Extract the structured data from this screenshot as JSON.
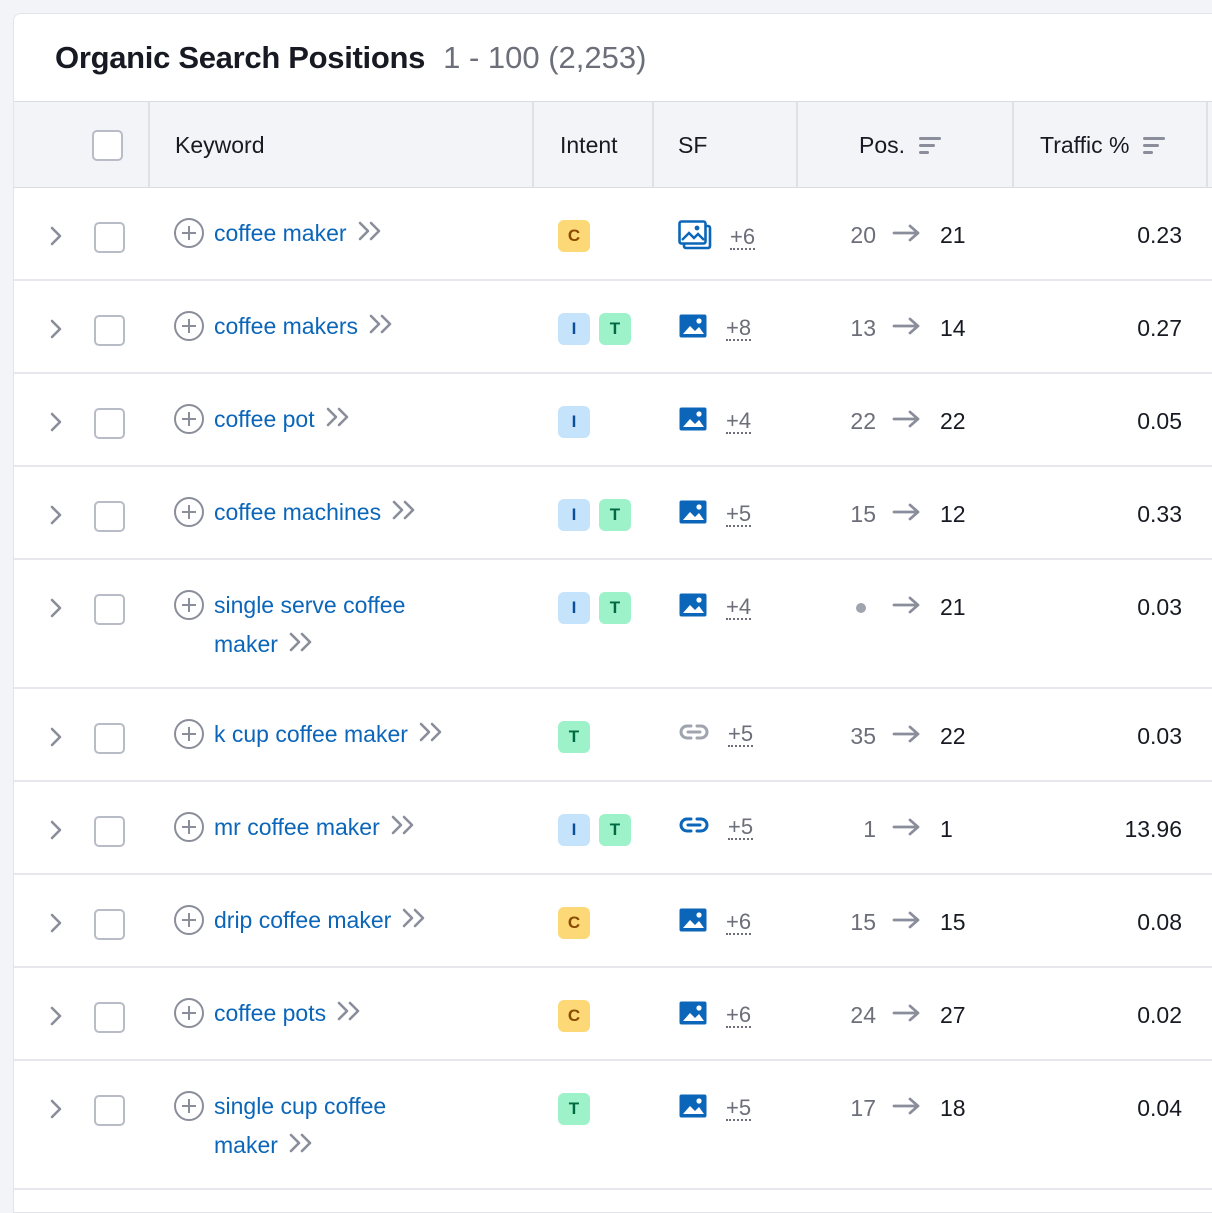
{
  "header": {
    "title": "Organic Search Positions",
    "range": "1 - 100 (2,253)"
  },
  "columns": {
    "keyword": "Keyword",
    "intent": "Intent",
    "sf": "SF",
    "pos": "Pos.",
    "traffic": "Traffic %"
  },
  "rows": [
    {
      "kw1": "coffee maker",
      "kw2": "",
      "intents": [
        "C"
      ],
      "sf_icon": "image-stack-icon",
      "sf_more": "+6",
      "pos_prev": "20",
      "pos_cur": "21",
      "traffic": "0.23"
    },
    {
      "kw1": "coffee makers",
      "kw2": "",
      "intents": [
        "I",
        "T"
      ],
      "sf_icon": "image-icon",
      "sf_more": "+8",
      "pos_prev": "13",
      "pos_cur": "14",
      "traffic": "0.27"
    },
    {
      "kw1": "coffee pot",
      "kw2": "",
      "intents": [
        "I"
      ],
      "sf_icon": "image-icon",
      "sf_more": "+4",
      "pos_prev": "22",
      "pos_cur": "22",
      "traffic": "0.05"
    },
    {
      "kw1": "coffee machines",
      "kw2": "",
      "intents": [
        "I",
        "T"
      ],
      "sf_icon": "image-icon",
      "sf_more": "+5",
      "pos_prev": "15",
      "pos_cur": "12",
      "traffic": "0.33"
    },
    {
      "kw1": "single serve coffee",
      "kw2": "maker",
      "intents": [
        "I",
        "T"
      ],
      "sf_icon": "image-icon",
      "sf_more": "+4",
      "pos_prev": "",
      "pos_cur": "21",
      "traffic": "0.03"
    },
    {
      "kw1": "k cup coffee maker",
      "kw2": "",
      "intents": [
        "T"
      ],
      "sf_icon": "link-icon-gray",
      "sf_more": "+5",
      "pos_prev": "35",
      "pos_cur": "22",
      "traffic": "0.03"
    },
    {
      "kw1": "mr coffee maker",
      "kw2": "",
      "intents": [
        "I",
        "T"
      ],
      "sf_icon": "link-icon",
      "sf_more": "+5",
      "pos_prev": "1",
      "pos_cur": "1",
      "traffic": "13.96"
    },
    {
      "kw1": "drip coffee maker",
      "kw2": "",
      "intents": [
        "C"
      ],
      "sf_icon": "image-icon",
      "sf_more": "+6",
      "pos_prev": "15",
      "pos_cur": "15",
      "traffic": "0.08"
    },
    {
      "kw1": "coffee pots",
      "kw2": "",
      "intents": [
        "C"
      ],
      "sf_icon": "image-icon",
      "sf_more": "+6",
      "pos_prev": "24",
      "pos_cur": "27",
      "traffic": "0.02"
    },
    {
      "kw1": "single cup coffee",
      "kw2": "maker",
      "intents": [
        "T"
      ],
      "sf_icon": "image-icon",
      "sf_more": "+5",
      "pos_prev": "17",
      "pos_cur": "18",
      "traffic": "0.04"
    }
  ],
  "colors": {
    "link": "#0b66b9",
    "muted": "#6c6e79",
    "intent_c": "#fcd877",
    "intent_i": "#c5e3fb",
    "intent_t": "#9ef2c9"
  }
}
